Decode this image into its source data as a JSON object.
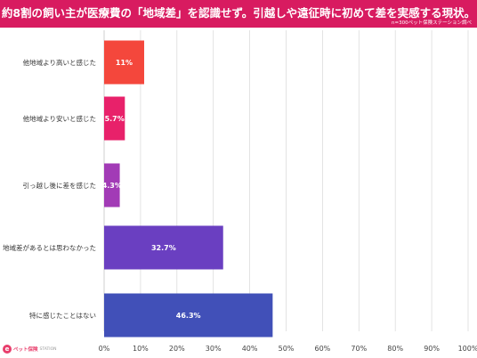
{
  "header": {
    "title": "約8割の飼い主が医療費の「地域差」を認識せず。引越しや遠征時に初めて差を実感する現状。",
    "source": "n=300ペット保険ステーション調べ"
  },
  "logo": {
    "mark": "e",
    "name": "ペット保険",
    "sub": "STATION"
  },
  "colors": {
    "banner": "#d81b60",
    "bars": [
      "#f4473c",
      "#e8216a",
      "#a23bb6",
      "#6a3fc1",
      "#4150b8"
    ]
  },
  "chart_data": {
    "type": "bar",
    "orientation": "horizontal",
    "categories": [
      "他地域より高いと感じた",
      "他地域より安いと感じた",
      "引っ越し後に差を感じた",
      "地域差があるとは思わなかった",
      "特に感じたことはない"
    ],
    "values": [
      11,
      5.7,
      4.3,
      32.7,
      46.3
    ],
    "value_labels": [
      "11%",
      "5.7%",
      "4.3%",
      "32.7%",
      "46.3%"
    ],
    "x_ticks": [
      "0%",
      "10%",
      "20%",
      "30%",
      "40%",
      "50%",
      "60%",
      "70%",
      "80%",
      "90%",
      "100%"
    ],
    "xlim": [
      0,
      100
    ],
    "grid": true,
    "legend": "none"
  }
}
